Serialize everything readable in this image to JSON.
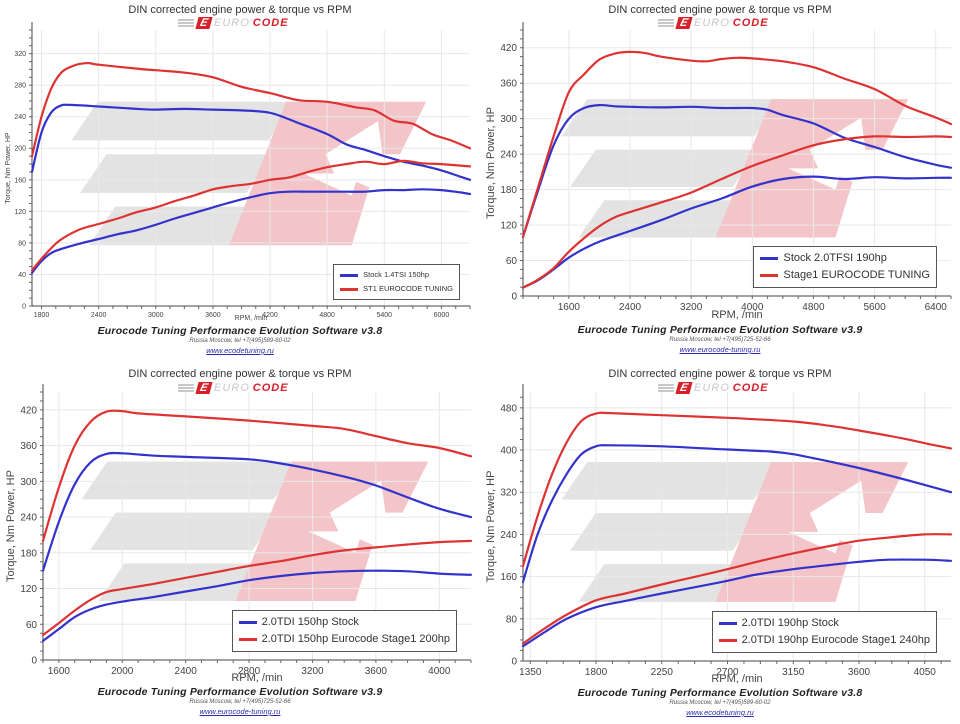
{
  "colors": {
    "stock": "#3333cc",
    "tuned": "#dd3333",
    "grid": "#e8e8e8",
    "watermark_gray": "#e3e3e3",
    "watermark_red": "#f3c5c8"
  },
  "logo": {
    "mark": "E",
    "euro": "EURO",
    "code": "CODE"
  },
  "chart_data": [
    {
      "type": "line",
      "title": "DIN corrected engine power & torque vs RPM",
      "xlabel": "RPM, /min",
      "ylabel": "Torque, Nm  Power, HP",
      "xlim": [
        1700,
        6300
      ],
      "ylim": [
        0,
        350
      ],
      "xticks": [
        1800,
        2400,
        3000,
        3600,
        4200,
        4800,
        5400,
        6000
      ],
      "yticks": [
        0,
        40,
        80,
        120,
        160,
        200,
        240,
        280,
        320
      ],
      "grid": true,
      "legend_position": "bottom-right",
      "footer": {
        "software": "Eurocode Tuning Performance Evolution Software v3.8",
        "address": "Russia Moscow, tel +7(495)589-60-02",
        "url": "www.ecodetuning.ru"
      },
      "series": [
        {
          "name": "Stock 1.4TSI 150hp",
          "role": "torque",
          "color": "stock",
          "x": [
            1700,
            1800,
            1900,
            2000,
            2100,
            2400,
            2800,
            3000,
            3300,
            3600,
            3900,
            4200,
            4500,
            4800,
            5000,
            5200,
            5400,
            5600,
            5800,
            6000,
            6200,
            6300
          ],
          "y": [
            170,
            220,
            245,
            254,
            255,
            253,
            250,
            249,
            250,
            249,
            248,
            245,
            232,
            218,
            205,
            198,
            190,
            183,
            178,
            172,
            164,
            160
          ]
        },
        {
          "name": "ST1 EUROCODE TUNING",
          "role": "torque",
          "color": "tuned",
          "x": [
            1700,
            1800,
            1900,
            2000,
            2100,
            2200,
            2300,
            2400,
            2800,
            3000,
            3300,
            3600,
            3900,
            4200,
            4500,
            4800,
            5100,
            5300,
            5500,
            5700,
            5900,
            6100,
            6300
          ],
          "y": [
            190,
            240,
            275,
            295,
            303,
            307,
            308,
            306,
            301,
            299,
            296,
            290,
            278,
            270,
            261,
            259,
            252,
            248,
            235,
            231,
            218,
            210,
            200
          ]
        },
        {
          "name": "Stock 1.4TSI 150hp",
          "role": "power",
          "color": "stock",
          "x": [
            1700,
            1800,
            1900,
            2000,
            2200,
            2400,
            2600,
            2800,
            3000,
            3200,
            3400,
            3600,
            3800,
            4000,
            4200,
            4400,
            4600,
            4800,
            5000,
            5200,
            5400,
            5600,
            5800,
            6000,
            6200,
            6300
          ],
          "y": [
            42,
            57,
            67,
            72,
            79,
            85,
            91,
            96,
            103,
            111,
            118,
            125,
            132,
            138,
            143,
            145,
            145,
            145,
            145,
            145,
            147,
            147,
            148,
            147,
            144,
            142
          ]
        },
        {
          "name": "ST1 EUROCODE TUNING",
          "role": "power",
          "color": "tuned",
          "x": [
            1700,
            1800,
            1900,
            2000,
            2200,
            2400,
            2600,
            2800,
            3000,
            3200,
            3400,
            3600,
            3800,
            4000,
            4200,
            4400,
            4600,
            4800,
            5000,
            5200,
            5400,
            5600,
            5800,
            6000,
            6200,
            6300
          ],
          "y": [
            45,
            60,
            73,
            84,
            97,
            104,
            111,
            119,
            125,
            133,
            140,
            148,
            152,
            155,
            160,
            163,
            170,
            176,
            180,
            183,
            180,
            184,
            181,
            180,
            178,
            177
          ]
        }
      ]
    },
    {
      "type": "line",
      "title": "DIN corrected engine power & torque vs RPM",
      "xlabel": "RPM, /min",
      "ylabel": "Torque, Nm  Power, HP",
      "xlim": [
        1000,
        6600
      ],
      "ylim": [
        0,
        450
      ],
      "xticks": [
        1600,
        2400,
        3200,
        4000,
        4800,
        5600,
        6400
      ],
      "yticks": [
        0,
        60,
        120,
        180,
        240,
        300,
        360,
        420
      ],
      "grid": true,
      "legend_position": "bottom-right",
      "footer": {
        "software": "Eurocode Tuning Performance Evolution Software v3.9",
        "address": "Russia Moscow, tel +7(495)725-52-66",
        "url": "www.eurocode-tuning.ru"
      },
      "series": [
        {
          "name": "Stock 2.0TFSI 190hp",
          "role": "torque",
          "color": "stock",
          "x": [
            1000,
            1200,
            1400,
            1600,
            1800,
            2000,
            2200,
            2400,
            2800,
            3200,
            3600,
            4000,
            4200,
            4400,
            4800,
            5200,
            5600,
            6000,
            6400,
            6600
          ],
          "y": [
            100,
            180,
            255,
            300,
            318,
            323,
            321,
            320,
            319,
            320,
            318,
            318,
            315,
            306,
            292,
            268,
            252,
            235,
            222,
            217
          ]
        },
        {
          "name": "Stage1 EUROCODE TUNING",
          "role": "torque",
          "color": "tuned",
          "x": [
            1000,
            1200,
            1400,
            1600,
            1800,
            2000,
            2200,
            2400,
            2600,
            2800,
            3200,
            3400,
            3600,
            3800,
            4000,
            4400,
            4800,
            5200,
            5600,
            6000,
            6400,
            6600
          ],
          "y": [
            100,
            185,
            270,
            345,
            375,
            400,
            410,
            413,
            411,
            405,
            398,
            397,
            401,
            403,
            402,
            397,
            387,
            368,
            350,
            322,
            302,
            291
          ]
        },
        {
          "name": "Stock 2.0TFSI 190hp",
          "role": "power",
          "color": "stock",
          "x": [
            1000,
            1200,
            1400,
            1600,
            1800,
            2000,
            2400,
            2800,
            3200,
            3600,
            4000,
            4400,
            4800,
            5200,
            5600,
            6000,
            6400,
            6600
          ],
          "y": [
            14,
            27,
            45,
            65,
            80,
            92,
            110,
            128,
            148,
            165,
            185,
            198,
            202,
            198,
            201,
            199,
            200,
            200
          ]
        },
        {
          "name": "Stage1 EUROCODE TUNING",
          "role": "power",
          "color": "tuned",
          "x": [
            1000,
            1200,
            1400,
            1600,
            1800,
            2000,
            2200,
            2400,
            2800,
            3200,
            3600,
            4000,
            4400,
            4800,
            5200,
            5600,
            6000,
            6400,
            6600
          ],
          "y": [
            14,
            28,
            47,
            75,
            98,
            118,
            133,
            142,
            158,
            175,
            198,
            220,
            238,
            255,
            265,
            270,
            269,
            270,
            269
          ]
        }
      ]
    },
    {
      "type": "line",
      "title": "DIN corrected engine power & torque vs RPM",
      "xlabel": "RPM, /min",
      "ylabel": "Torque, Nm  Power, HP",
      "xlim": [
        1500,
        4200
      ],
      "ylim": [
        0,
        450
      ],
      "xticks": [
        1600,
        2000,
        2400,
        2800,
        3200,
        3600,
        4000
      ],
      "yticks": [
        0,
        60,
        120,
        180,
        240,
        300,
        360,
        420
      ],
      "grid": true,
      "legend_position": "bottom-right",
      "footer": {
        "software": "Eurocode Tuning Performance Evolution Software v3.9",
        "address": "Russia Moscow, tel +7(495)725-52-66",
        "url": "www.eurocode-tuning.ru"
      },
      "series": [
        {
          "name": "2.0TDI 150hp Stock",
          "role": "torque",
          "color": "stock",
          "x": [
            1500,
            1600,
            1700,
            1800,
            1900,
            2000,
            2200,
            2400,
            2800,
            3000,
            3200,
            3400,
            3600,
            3800,
            4000,
            4200
          ],
          "y": [
            150,
            232,
            295,
            332,
            346,
            347,
            343,
            341,
            337,
            330,
            320,
            308,
            293,
            273,
            254,
            240
          ]
        },
        {
          "name": "2.0TDI 150hp Eurocode Stage1 200hp",
          "role": "torque",
          "color": "tuned",
          "x": [
            1500,
            1600,
            1700,
            1800,
            1900,
            2000,
            2100,
            2400,
            2800,
            3200,
            3400,
            3600,
            3800,
            4000,
            4200
          ],
          "y": [
            200,
            290,
            360,
            400,
            417,
            418,
            414,
            409,
            402,
            393,
            388,
            376,
            364,
            356,
            342
          ]
        },
        {
          "name": "2.0TDI 150hp Stock",
          "role": "power",
          "color": "stock",
          "x": [
            1500,
            1600,
            1700,
            1800,
            1900,
            2000,
            2200,
            2400,
            2600,
            2800,
            3000,
            3200,
            3400,
            3600,
            3800,
            4000,
            4200
          ],
          "y": [
            32,
            52,
            72,
            85,
            93,
            98,
            106,
            115,
            124,
            134,
            141,
            146,
            149,
            150,
            149,
            145,
            143
          ]
        },
        {
          "name": "2.0TDI 150hp Eurocode Stage1 200hp",
          "role": "power",
          "color": "tuned",
          "x": [
            1500,
            1600,
            1700,
            1800,
            1900,
            2000,
            2200,
            2400,
            2600,
            2800,
            3000,
            3200,
            3400,
            3600,
            3800,
            4000,
            4200
          ],
          "y": [
            42,
            62,
            83,
            101,
            114,
            119,
            128,
            138,
            148,
            158,
            166,
            176,
            184,
            189,
            194,
            198,
            200
          ]
        }
      ]
    },
    {
      "type": "line",
      "title": "DIN corrected engine power & torque vs RPM",
      "xlabel": "RPM, /min",
      "ylabel": "Torque, Nm  Power, HP",
      "xlim": [
        1300,
        4230
      ],
      "ylim": [
        0,
        510
      ],
      "xticks": [
        1350,
        1800,
        2250,
        2700,
        3150,
        3600,
        4050
      ],
      "yticks": [
        0,
        80,
        160,
        240,
        320,
        400,
        480
      ],
      "grid": true,
      "legend_position": "bottom-right",
      "footer": {
        "software": "Eurocode Tuning Performance Evolution Software v3.8",
        "address": "Russia Moscow, tel +7(495)589-60-02",
        "url": "www.ecodetuning.ru"
      },
      "series": [
        {
          "name": "2.0TDI 190hp Stock",
          "role": "torque",
          "color": "stock",
          "x": [
            1300,
            1400,
            1500,
            1600,
            1700,
            1800,
            1900,
            2250,
            2700,
            3000,
            3150,
            3400,
            3600,
            3900,
            4230
          ],
          "y": [
            150,
            240,
            305,
            355,
            392,
            407,
            409,
            407,
            401,
            397,
            392,
            378,
            366,
            345,
            320
          ]
        },
        {
          "name": "2.0TDI 190hp Eurocode Stage1 240hp",
          "role": "torque",
          "color": "tuned",
          "x": [
            1300,
            1400,
            1500,
            1600,
            1700,
            1800,
            1900,
            2250,
            2700,
            3150,
            3400,
            3600,
            3900,
            4100,
            4230
          ],
          "y": [
            180,
            275,
            355,
            415,
            455,
            469,
            470,
            466,
            461,
            454,
            446,
            437,
            422,
            410,
            403
          ]
        },
        {
          "name": "2.0TDI 190hp Stock",
          "role": "power",
          "color": "stock",
          "x": [
            1300,
            1450,
            1600,
            1800,
            2000,
            2250,
            2500,
            2700,
            2900,
            3150,
            3400,
            3600,
            3800,
            4050,
            4230
          ],
          "y": [
            28,
            55,
            80,
            102,
            114,
            128,
            141,
            152,
            164,
            174,
            182,
            188,
            192,
            192,
            190
          ]
        },
        {
          "name": "2.0TDI 190hp Eurocode Stage1 240hp",
          "role": "power",
          "color": "tuned",
          "x": [
            1300,
            1450,
            1600,
            1800,
            2000,
            2250,
            2500,
            2700,
            2900,
            3150,
            3400,
            3600,
            3800,
            4050,
            4230
          ],
          "y": [
            33,
            62,
            88,
            115,
            128,
            145,
            161,
            174,
            188,
            204,
            218,
            228,
            234,
            240,
            240
          ]
        }
      ]
    }
  ]
}
